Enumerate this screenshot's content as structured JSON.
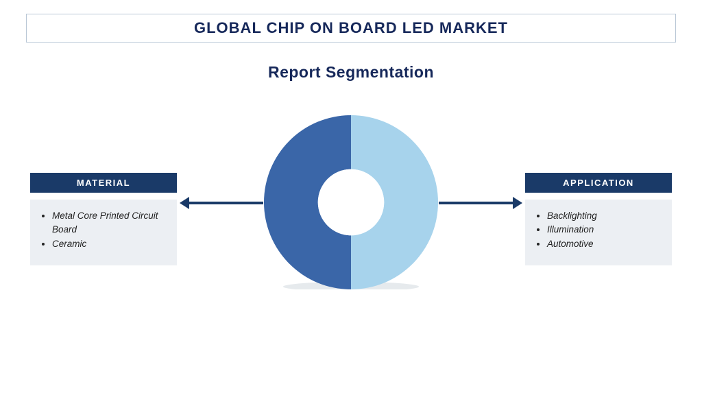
{
  "title": "GLOBAL CHIP ON BOARD LED MARKET",
  "subheading": "Report Segmentation",
  "donut": {
    "size": 254,
    "inner_ratio": 0.38,
    "slices": [
      {
        "fraction": 0.5,
        "color": "#a7d3ec"
      },
      {
        "fraction": 0.5,
        "color": "#3a66a8"
      }
    ],
    "background": "#ffffff",
    "shadow_color": "#d2d8df"
  },
  "arrow_color": "#1a3a68",
  "panels": {
    "left": {
      "header": "MATERIAL",
      "items": [
        "Metal Core Printed Circuit Board",
        "Ceramic"
      ]
    },
    "right": {
      "header": "APPLICATION",
      "items": [
        "Backlighting",
        "Illumination",
        "Automotive"
      ]
    }
  },
  "colors": {
    "title_text": "#16285a",
    "title_border": "#b9c7d6",
    "panel_header_bg": "#1a3a68",
    "panel_header_text": "#ffffff",
    "panel_body_bg": "#eceff3",
    "panel_item_text": "#222222"
  }
}
